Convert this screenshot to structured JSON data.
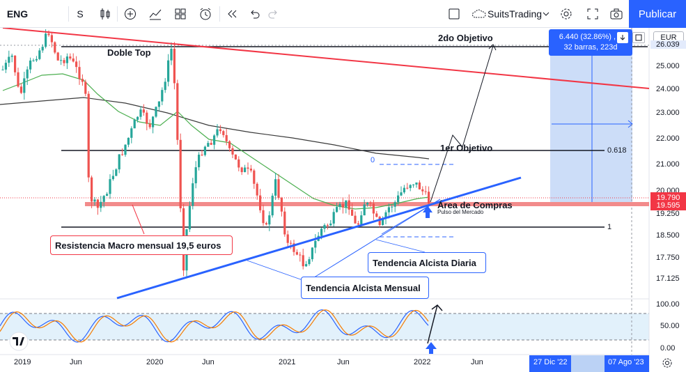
{
  "toolbar": {
    "symbol": "ENG",
    "interval": "S",
    "icons": [
      "candles-icon",
      "plus-circle-icon",
      "indicators-icon",
      "layout-icon",
      "alert-icon",
      "replay-icon",
      "undo-icon",
      "redo-icon"
    ],
    "layout_name": "SuitsTrading",
    "publish_label": "Publicar"
  },
  "measure": {
    "line1": "6.440 (32.86%) , 1",
    "line2": "32 barras, 223d"
  },
  "currency": "EUR",
  "annotations": {
    "doble_top": "Doble Top",
    "objetivo2": "2do Objetivo",
    "objetivo1": "1er Objetivo",
    "area_compras": "Área de Compras",
    "pulso": "Pulso del Mercado",
    "resistencia": "Resistencia Macro mensual 19,5 euros",
    "tendencia_diaria": "Tendencia Alcista Diaria",
    "tendencia_mensual": "Tendencia Alcista Mensual",
    "fib_0618": "0.618",
    "fib_1": "1",
    "fib_0": "0"
  },
  "price_axis": {
    "labels": [
      "26.039",
      "25.000",
      "24.000",
      "23.000",
      "22.000",
      "21.000",
      "20.000",
      "19.250",
      "18.500",
      "17.750",
      "17.125"
    ],
    "tag_last": "19.790",
    "tag_current": "19.595",
    "osc_labels": [
      "100.00",
      "50.00",
      "0.00"
    ]
  },
  "time_axis": {
    "labels": [
      "2019",
      "Jun",
      "2020",
      "Jun",
      "2021",
      "Jun",
      "2022",
      "Jun"
    ],
    "range_start": "27 Dic '22",
    "range_end": "07 Ago '23"
  },
  "chart_data": {
    "type": "candlestick",
    "interval": "weekly",
    "symbol": "ENG",
    "x_range": [
      "2019-01",
      "2022-03"
    ],
    "y_range": [
      16.8,
      26.5
    ],
    "levels": {
      "doble_top": 26.0,
      "objetivo_1": 21.5,
      "resistencia": 19.5,
      "soporte": 18.8
    },
    "oscillator": {
      "range": [
        0,
        100
      ],
      "bands": [
        20,
        80
      ]
    },
    "colors": {
      "up": "#26a69a",
      "down": "#ef5350",
      "trend": "#2962ff",
      "resistance": "#f23645",
      "ma_slow": "#3a3a3a",
      "ma_fast": "#4caf50"
    }
  }
}
